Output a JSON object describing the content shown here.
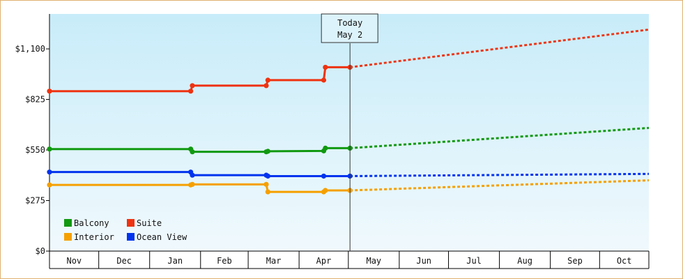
{
  "chart_data": {
    "type": "line",
    "title": "",
    "xlabel": "",
    "ylabel": "",
    "x_start": "2023-11-01",
    "x_end": "2024-10-31",
    "month_labels": [
      "Nov",
      "Dec",
      "Jan",
      "Feb",
      "Mar",
      "Apr",
      "May",
      "Jun",
      "Jul",
      "Aug",
      "Sep",
      "Oct"
    ],
    "y_ticks": [
      0,
      275,
      550,
      825,
      1100
    ],
    "y_tick_labels": [
      "$0",
      "$275",
      "$550",
      "$825",
      "$1,100"
    ],
    "ylim": [
      0,
      1290
    ],
    "today": {
      "line1": "Today",
      "line2": "May 2",
      "date": "2024-05-02"
    },
    "grid": false,
    "legend_position": "bottom-left",
    "series": [
      {
        "name": "Balcony",
        "color": "#119911",
        "history": [
          [
            "2023-11-01",
            555
          ],
          [
            "2024-01-26",
            555
          ],
          [
            "2024-01-27",
            540
          ],
          [
            "2024-03-12",
            540
          ],
          [
            "2024-03-13",
            543
          ],
          [
            "2024-04-16",
            545
          ],
          [
            "2024-04-17",
            560
          ],
          [
            "2024-05-02",
            560
          ]
        ],
        "history_markers": [
          [
            "2023-11-01",
            555
          ],
          [
            "2024-01-26",
            555
          ],
          [
            "2024-01-27",
            540
          ],
          [
            "2024-03-12",
            540
          ],
          [
            "2024-03-13",
            543
          ],
          [
            "2024-04-16",
            545
          ],
          [
            "2024-04-17",
            560
          ],
          [
            "2024-05-02",
            560
          ]
        ],
        "projection": [
          [
            "2024-05-02",
            560
          ],
          [
            "2024-10-31",
            670
          ]
        ]
      },
      {
        "name": "Suite",
        "color": "#ee3311",
        "history": [
          [
            "2023-11-01",
            870
          ],
          [
            "2024-01-26",
            870
          ],
          [
            "2024-01-27",
            900
          ],
          [
            "2024-03-12",
            900
          ],
          [
            "2024-03-13",
            930
          ],
          [
            "2024-04-16",
            930
          ],
          [
            "2024-04-17",
            1000
          ],
          [
            "2024-05-02",
            1000
          ]
        ],
        "history_markers": [
          [
            "2023-11-01",
            870
          ],
          [
            "2024-01-26",
            870
          ],
          [
            "2024-01-27",
            900
          ],
          [
            "2024-03-12",
            900
          ],
          [
            "2024-03-13",
            930
          ],
          [
            "2024-04-16",
            930
          ],
          [
            "2024-04-17",
            1000
          ],
          [
            "2024-05-02",
            1000
          ]
        ],
        "projection": [
          [
            "2024-05-02",
            1000
          ],
          [
            "2024-10-31",
            1205
          ]
        ]
      },
      {
        "name": "Interior",
        "color": "#f5a000",
        "history": [
          [
            "2023-11-01",
            360
          ],
          [
            "2024-01-26",
            360
          ],
          [
            "2024-01-27",
            363
          ],
          [
            "2024-03-12",
            363
          ],
          [
            "2024-03-13",
            322
          ],
          [
            "2024-04-16",
            322
          ],
          [
            "2024-04-17",
            330
          ],
          [
            "2024-05-02",
            330
          ]
        ],
        "history_markers": [
          [
            "2023-11-01",
            360
          ],
          [
            "2024-01-26",
            360
          ],
          [
            "2024-01-27",
            363
          ],
          [
            "2024-03-12",
            363
          ],
          [
            "2024-03-13",
            322
          ],
          [
            "2024-04-16",
            322
          ],
          [
            "2024-04-17",
            330
          ],
          [
            "2024-05-02",
            330
          ]
        ],
        "projection": [
          [
            "2024-05-02",
            330
          ],
          [
            "2024-10-31",
            385
          ]
        ]
      },
      {
        "name": "Ocean View",
        "color": "#0033ee",
        "history": [
          [
            "2023-11-01",
            430
          ],
          [
            "2024-01-26",
            430
          ],
          [
            "2024-01-27",
            413
          ],
          [
            "2024-03-12",
            413
          ],
          [
            "2024-03-13",
            408
          ],
          [
            "2024-05-02",
            408
          ]
        ],
        "history_markers": [
          [
            "2023-11-01",
            430
          ],
          [
            "2024-01-26",
            430
          ],
          [
            "2024-01-27",
            413
          ],
          [
            "2024-03-12",
            413
          ],
          [
            "2024-03-13",
            408
          ],
          [
            "2024-04-16",
            408
          ],
          [
            "2024-05-02",
            408
          ]
        ],
        "projection": [
          [
            "2024-05-02",
            408
          ],
          [
            "2024-10-31",
            420
          ]
        ]
      }
    ]
  }
}
